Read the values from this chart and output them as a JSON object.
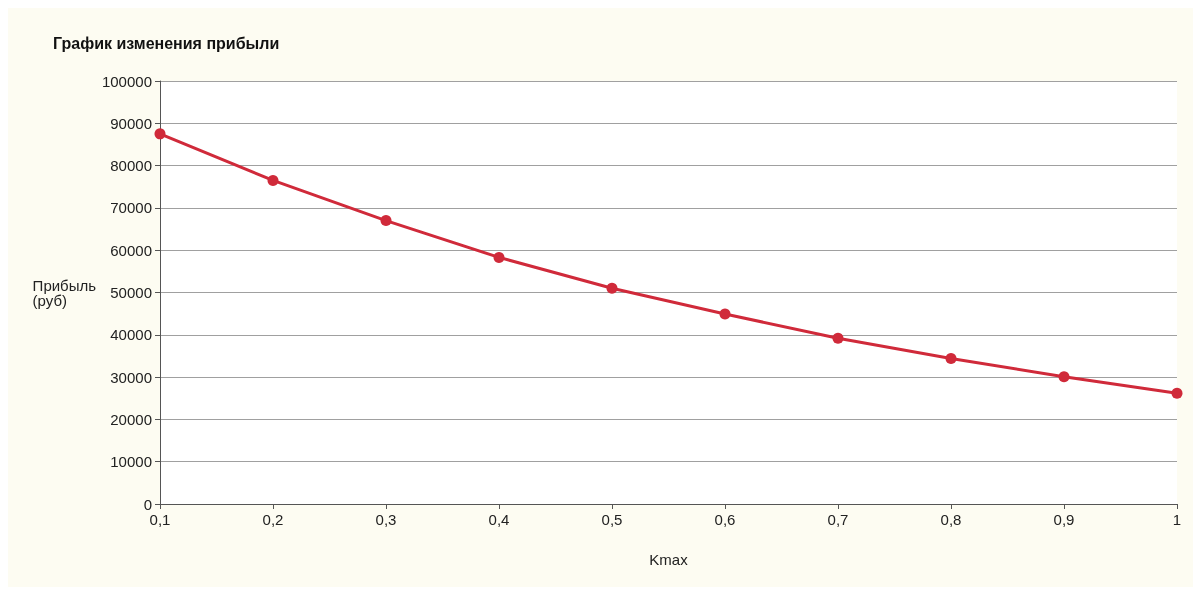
{
  "chart_data": {
    "type": "line",
    "title": "График изменения прибыли",
    "xlabel": "Kmax",
    "ylabel": "Прибыль\n(руб)",
    "x": [
      0.1,
      0.2,
      0.3,
      0.4,
      0.5,
      0.6,
      0.7,
      0.8,
      0.9,
      1
    ],
    "series": [
      {
        "color": "#d02a3a",
        "values": [
          87500,
          76500,
          67000,
          58300,
          51000,
          44900,
          39200,
          34400,
          30100,
          26200
        ]
      }
    ],
    "xlim": [
      0.1,
      1
    ],
    "xticks": [
      {
        "value": 0.1,
        "label": "0,1"
      },
      {
        "value": 0.2,
        "label": "0,2"
      },
      {
        "value": 0.3,
        "label": "0,3"
      },
      {
        "value": 0.4,
        "label": "0,4"
      },
      {
        "value": 0.5,
        "label": "0,5"
      },
      {
        "value": 0.6,
        "label": "0,6"
      },
      {
        "value": 0.7,
        "label": "0,7"
      },
      {
        "value": 0.8,
        "label": "0,8"
      },
      {
        "value": 0.9,
        "label": "0,9"
      },
      1
    ],
    "ylim": [
      0,
      100000
    ],
    "yticks": [
      0,
      10000,
      20000,
      30000,
      40000,
      50000,
      60000,
      70000,
      80000,
      90000,
      100000
    ],
    "grid": "y",
    "marker": "circle",
    "line_style": "solid"
  }
}
